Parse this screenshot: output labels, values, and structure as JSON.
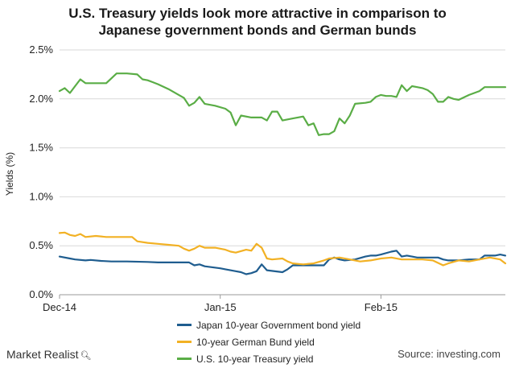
{
  "title_line1": "U.S. Treasury yields look more attractive in comparison to",
  "title_line2": "Japanese government bonds and German bunds",
  "brand": "Market Realist",
  "source": "Source: investing.com",
  "chart_data": {
    "type": "line",
    "ylabel": "Yields (%)",
    "ylim": [
      0,
      2.5
    ],
    "yticks": [
      "0.0%",
      "0.5%",
      "1.0%",
      "1.5%",
      "2.0%",
      "2.5%"
    ],
    "xlim": [
      0,
      86
    ],
    "xticks": [
      {
        "label": "Dec-14",
        "x": 0
      },
      {
        "label": "Jan-15",
        "x": 31
      },
      {
        "label": "Feb-15",
        "x": 62
      }
    ],
    "grid": true,
    "legend_position": "bottom",
    "series": [
      {
        "name": "Japan 10-year Government bond yield",
        "color": "#1f5d8f",
        "points": [
          [
            0,
            0.39
          ],
          [
            2,
            0.37
          ],
          [
            3,
            0.36
          ],
          [
            5,
            0.35
          ],
          [
            6,
            0.355
          ],
          [
            8,
            0.345
          ],
          [
            10,
            0.34
          ],
          [
            13,
            0.34
          ],
          [
            17,
            0.335
          ],
          [
            19,
            0.33
          ],
          [
            21,
            0.33
          ],
          [
            23,
            0.33
          ],
          [
            24,
            0.33
          ],
          [
            25,
            0.33
          ],
          [
            26,
            0.3
          ],
          [
            27,
            0.31
          ],
          [
            28,
            0.29
          ],
          [
            31,
            0.27
          ],
          [
            32,
            0.26
          ],
          [
            34,
            0.24
          ],
          [
            35,
            0.23
          ],
          [
            36,
            0.21
          ],
          [
            37,
            0.22
          ],
          [
            38,
            0.24
          ],
          [
            39,
            0.31
          ],
          [
            40,
            0.25
          ],
          [
            43,
            0.23
          ],
          [
            44,
            0.26
          ],
          [
            45,
            0.3
          ],
          [
            47,
            0.3
          ],
          [
            49,
            0.3
          ],
          [
            51,
            0.3
          ],
          [
            52,
            0.36
          ],
          [
            53,
            0.38
          ],
          [
            54,
            0.36
          ],
          [
            55,
            0.35
          ],
          [
            57,
            0.36
          ],
          [
            59,
            0.39
          ],
          [
            60,
            0.4
          ],
          [
            61,
            0.4
          ],
          [
            62,
            0.41
          ],
          [
            64,
            0.44
          ],
          [
            65,
            0.45
          ],
          [
            66,
            0.39
          ],
          [
            67,
            0.4
          ],
          [
            68,
            0.39
          ],
          [
            69,
            0.38
          ],
          [
            71,
            0.38
          ],
          [
            73,
            0.38
          ],
          [
            74,
            0.36
          ],
          [
            75,
            0.35
          ],
          [
            77,
            0.35
          ],
          [
            79,
            0.36
          ],
          [
            81,
            0.36
          ],
          [
            82,
            0.4
          ],
          [
            84,
            0.4
          ],
          [
            85,
            0.41
          ],
          [
            86,
            0.4
          ]
        ]
      },
      {
        "name": "10-year German Bund yield",
        "color": "#f2b124",
        "points": [
          [
            0,
            0.63
          ],
          [
            1,
            0.635
          ],
          [
            2,
            0.61
          ],
          [
            3,
            0.6
          ],
          [
            4,
            0.62
          ],
          [
            5,
            0.59
          ],
          [
            7,
            0.6
          ],
          [
            9,
            0.59
          ],
          [
            11,
            0.59
          ],
          [
            13,
            0.59
          ],
          [
            14,
            0.59
          ],
          [
            15,
            0.545
          ],
          [
            17,
            0.53
          ],
          [
            19,
            0.52
          ],
          [
            21,
            0.51
          ],
          [
            23,
            0.5
          ],
          [
            24,
            0.47
          ],
          [
            25,
            0.45
          ],
          [
            26,
            0.47
          ],
          [
            27,
            0.5
          ],
          [
            28,
            0.48
          ],
          [
            30,
            0.48
          ],
          [
            32,
            0.46
          ],
          [
            33,
            0.44
          ],
          [
            34,
            0.43
          ],
          [
            36,
            0.46
          ],
          [
            37,
            0.45
          ],
          [
            38,
            0.52
          ],
          [
            39,
            0.48
          ],
          [
            40,
            0.37
          ],
          [
            41,
            0.36
          ],
          [
            43,
            0.37
          ],
          [
            44,
            0.34
          ],
          [
            45,
            0.32
          ],
          [
            47,
            0.31
          ],
          [
            49,
            0.32
          ],
          [
            51,
            0.35
          ],
          [
            52,
            0.37
          ],
          [
            54,
            0.38
          ],
          [
            56,
            0.36
          ],
          [
            58,
            0.34
          ],
          [
            60,
            0.35
          ],
          [
            62,
            0.37
          ],
          [
            64,
            0.38
          ],
          [
            66,
            0.36
          ],
          [
            68,
            0.36
          ],
          [
            70,
            0.36
          ],
          [
            72,
            0.35
          ],
          [
            74,
            0.3
          ],
          [
            75,
            0.32
          ],
          [
            77,
            0.35
          ],
          [
            79,
            0.34
          ],
          [
            81,
            0.36
          ],
          [
            83,
            0.38
          ],
          [
            85,
            0.36
          ],
          [
            86,
            0.32
          ]
        ]
      },
      {
        "name": "U.S. 10-year Treasury yield",
        "color": "#5aad46",
        "points": [
          [
            0,
            2.08
          ],
          [
            1,
            2.11
          ],
          [
            2,
            2.06
          ],
          [
            3,
            2.13
          ],
          [
            4,
            2.2
          ],
          [
            5,
            2.16
          ],
          [
            7,
            2.16
          ],
          [
            9,
            2.16
          ],
          [
            10,
            2.21
          ],
          [
            11,
            2.26
          ],
          [
            13,
            2.26
          ],
          [
            15,
            2.25
          ],
          [
            16,
            2.2
          ],
          [
            17,
            2.19
          ],
          [
            18,
            2.17
          ],
          [
            19,
            2.15
          ],
          [
            21,
            2.1
          ],
          [
            23,
            2.04
          ],
          [
            24,
            2.01
          ],
          [
            25,
            1.93
          ],
          [
            26,
            1.96
          ],
          [
            27,
            2.02
          ],
          [
            28,
            1.95
          ],
          [
            30,
            1.93
          ],
          [
            32,
            1.9
          ],
          [
            33,
            1.86
          ],
          [
            34,
            1.73
          ],
          [
            35,
            1.83
          ],
          [
            37,
            1.81
          ],
          [
            39,
            1.81
          ],
          [
            40,
            1.78
          ],
          [
            41,
            1.87
          ],
          [
            42,
            1.87
          ],
          [
            43,
            1.78
          ],
          [
            45,
            1.8
          ],
          [
            47,
            1.82
          ],
          [
            48,
            1.73
          ],
          [
            49,
            1.75
          ],
          [
            50,
            1.63
          ],
          [
            51,
            1.64
          ],
          [
            52,
            1.64
          ],
          [
            53,
            1.67
          ],
          [
            54,
            1.8
          ],
          [
            55,
            1.75
          ],
          [
            56,
            1.83
          ],
          [
            57,
            1.95
          ],
          [
            59,
            1.96
          ],
          [
            60,
            1.97
          ],
          [
            61,
            2.02
          ],
          [
            62,
            2.04
          ],
          [
            63,
            2.03
          ],
          [
            64,
            2.03
          ],
          [
            65,
            2.02
          ],
          [
            66,
            2.14
          ],
          [
            67,
            2.08
          ],
          [
            68,
            2.13
          ],
          [
            69,
            2.12
          ],
          [
            70,
            2.11
          ],
          [
            71,
            2.09
          ],
          [
            72,
            2.05
          ],
          [
            73,
            1.97
          ],
          [
            74,
            1.97
          ],
          [
            75,
            2.02
          ],
          [
            76,
            2.0
          ],
          [
            77,
            1.99
          ],
          [
            79,
            2.04
          ],
          [
            81,
            2.08
          ],
          [
            82,
            2.12
          ],
          [
            84,
            2.12
          ],
          [
            86,
            2.12
          ]
        ]
      }
    ]
  }
}
